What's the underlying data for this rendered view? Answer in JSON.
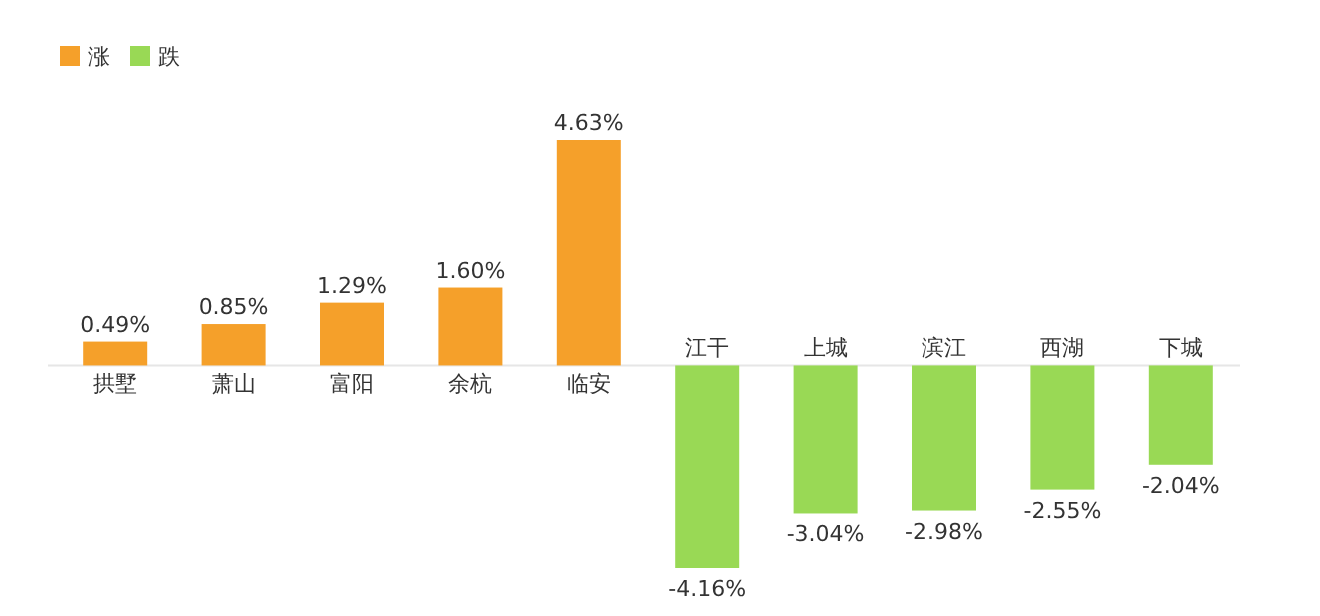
{
  "chart_data": {
    "type": "bar",
    "stacked": true,
    "legend": "top left",
    "categories": [
      "拱墅",
      "萧山",
      "富阳",
      "余杭",
      "临安",
      "江干",
      "上城",
      "滨江",
      "西湖",
      "下城"
    ],
    "series": [
      {
        "name": "涨",
        "color": "#f5a02a",
        "values": [
          0.49,
          0.85,
          1.29,
          1.6,
          4.63,
          null,
          null,
          null,
          null,
          null
        ],
        "value_labels": [
          "0.49%",
          "0.85%",
          "1.29%",
          "1.60%",
          "4.63%",
          null,
          null,
          null,
          null,
          null
        ]
      },
      {
        "name": "跌",
        "color": "#99d955",
        "values": [
          null,
          null,
          null,
          null,
          null,
          -4.16,
          -3.04,
          -2.98,
          -2.55,
          -2.04
        ],
        "value_labels": [
          null,
          null,
          null,
          null,
          null,
          "-4.16%",
          "-3.04%",
          "-2.98%",
          "-2.55%",
          "-2.04%"
        ]
      }
    ]
  }
}
